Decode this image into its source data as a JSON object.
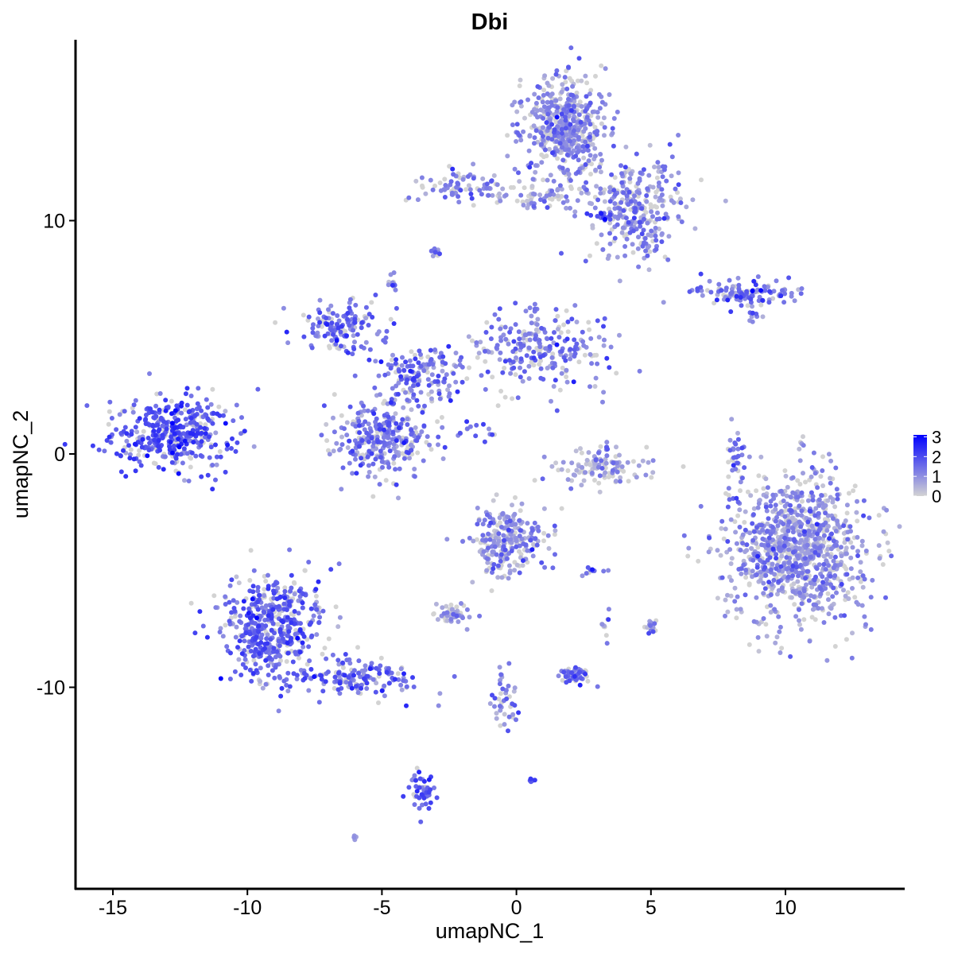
{
  "chart_data": {
    "type": "scatter",
    "title": "Dbi",
    "xlabel": "umapNC_1",
    "ylabel": "umapNC_2",
    "xlim": [
      -16.3,
      14.5
    ],
    "ylim": [
      -18.2,
      17.8
    ],
    "xticks": [
      -15,
      -10,
      -5,
      0,
      5,
      10
    ],
    "yticks": [
      -10,
      0,
      10
    ],
    "xtick_labels": [
      "-15",
      "-10",
      "-5",
      "0",
      "5",
      "10"
    ],
    "ytick_labels": [
      "-10",
      "0",
      "10"
    ],
    "grid": false,
    "color_scale": {
      "low": "#d3d3d3",
      "high": "#0000ff",
      "min": 0,
      "max": 3.1,
      "ticks": [
        0,
        1,
        2,
        3
      ],
      "tick_labels": [
        "0",
        "1",
        "2",
        "3"
      ]
    },
    "legend_position": "right",
    "clusters": [
      {
        "x": -12.8,
        "y": 0.9,
        "sx": 1.1,
        "sy": 0.8,
        "n": 420,
        "mean_expr": 1.8
      },
      {
        "x": 1.8,
        "y": 14.0,
        "sx": 0.8,
        "sy": 1.1,
        "n": 500,
        "mean_expr": 1.0
      },
      {
        "x": 4.4,
        "y": 10.6,
        "sx": 0.9,
        "sy": 1.1,
        "n": 300,
        "mean_expr": 1.1
      },
      {
        "x": -2.1,
        "y": 11.5,
        "sx": 0.9,
        "sy": 0.35,
        "n": 80,
        "mean_expr": 1.2
      },
      {
        "x": 1.0,
        "y": 11.0,
        "sx": 1.0,
        "sy": 0.3,
        "n": 60,
        "mean_expr": 0.9
      },
      {
        "x": 8.3,
        "y": 6.9,
        "sx": 1.0,
        "sy": 0.25,
        "n": 120,
        "mean_expr": 1.4
      },
      {
        "x": -6.5,
        "y": 5.5,
        "sx": 0.8,
        "sy": 0.6,
        "n": 150,
        "mean_expr": 1.4
      },
      {
        "x": 0.9,
        "y": 4.5,
        "sx": 1.3,
        "sy": 0.8,
        "n": 250,
        "mean_expr": 1.3
      },
      {
        "x": -5.0,
        "y": 0.7,
        "sx": 0.9,
        "sy": 0.8,
        "n": 300,
        "mean_expr": 1.3
      },
      {
        "x": -3.5,
        "y": 3.3,
        "sx": 0.8,
        "sy": 0.6,
        "n": 150,
        "mean_expr": 1.4
      },
      {
        "x": 10.4,
        "y": -4.0,
        "sx": 1.3,
        "sy": 1.6,
        "n": 1000,
        "mean_expr": 0.9
      },
      {
        "x": -9.0,
        "y": -7.5,
        "sx": 0.9,
        "sy": 1.2,
        "n": 500,
        "mean_expr": 1.6
      },
      {
        "x": -5.6,
        "y": -9.5,
        "sx": 1.0,
        "sy": 0.45,
        "n": 150,
        "mean_expr": 1.5
      },
      {
        "x": -0.3,
        "y": -3.7,
        "sx": 0.7,
        "sy": 0.7,
        "n": 250,
        "mean_expr": 1.0
      },
      {
        "x": 3.3,
        "y": -0.5,
        "sx": 0.8,
        "sy": 0.4,
        "n": 120,
        "mean_expr": 0.7
      },
      {
        "x": -2.4,
        "y": -6.9,
        "sx": 0.3,
        "sy": 0.2,
        "n": 50,
        "mean_expr": 0.7
      },
      {
        "x": 2.2,
        "y": -9.5,
        "sx": 0.3,
        "sy": 0.2,
        "n": 60,
        "mean_expr": 1.6
      },
      {
        "x": -3.5,
        "y": -14.5,
        "sx": 0.25,
        "sy": 0.5,
        "n": 50,
        "mean_expr": 1.8
      },
      {
        "x": 8.2,
        "y": -0.1,
        "sx": 0.15,
        "sy": 0.6,
        "n": 30,
        "mean_expr": 1.4
      },
      {
        "x": -0.5,
        "y": -10.5,
        "sx": 0.3,
        "sy": 0.9,
        "n": 40,
        "mean_expr": 1.3
      },
      {
        "x": 5.0,
        "y": -7.4,
        "sx": 0.1,
        "sy": 0.2,
        "n": 20,
        "mean_expr": 1.3
      },
      {
        "x": -3.0,
        "y": 8.6,
        "sx": 0.1,
        "sy": 0.1,
        "n": 12,
        "mean_expr": 1.2
      },
      {
        "x": -4.6,
        "y": 7.4,
        "sx": 0.1,
        "sy": 0.15,
        "n": 12,
        "mean_expr": 1.2
      },
      {
        "x": 3.2,
        "y": 10.2,
        "sx": 0.2,
        "sy": 0.1,
        "n": 15,
        "mean_expr": 2.0
      },
      {
        "x": 2.8,
        "y": -5.0,
        "sx": 0.2,
        "sy": 0.1,
        "n": 10,
        "mean_expr": 1.3
      },
      {
        "x": 3.3,
        "y": -7.5,
        "sx": 0.1,
        "sy": 0.3,
        "n": 10,
        "mean_expr": 0.8
      },
      {
        "x": -1.5,
        "y": 0.9,
        "sx": 0.4,
        "sy": 0.3,
        "n": 15,
        "mean_expr": 1.3
      },
      {
        "x": 0.55,
        "y": -14.0,
        "sx": 0.05,
        "sy": 0.05,
        "n": 8,
        "mean_expr": 1.5
      },
      {
        "x": -6.0,
        "y": -16.4,
        "sx": 0.05,
        "sy": 0.05,
        "n": 5,
        "mean_expr": 1.2
      },
      {
        "x": 8.8,
        "y": 6.0,
        "sx": 0.2,
        "sy": 0.15,
        "n": 10,
        "mean_expr": 1.2
      }
    ]
  }
}
